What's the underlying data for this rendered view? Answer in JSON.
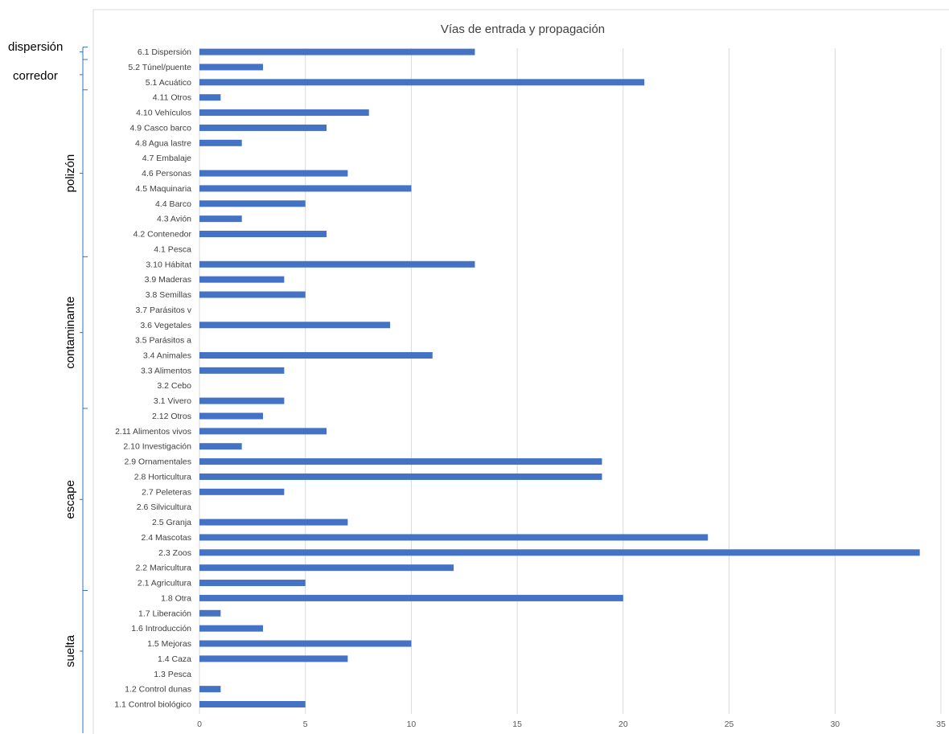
{
  "chart_data": {
    "type": "bar",
    "orientation": "horizontal",
    "title": "Vías de entrada y propagación",
    "xlim": [
      0,
      35
    ],
    "xticks": [
      0,
      5,
      10,
      15,
      20,
      25,
      30,
      35
    ],
    "grid": true,
    "color": "#4472c4",
    "categories": [
      "1.1 Control biológico",
      "1.2 Control dunas",
      "1.3 Pesca",
      "1.4 Caza",
      "1.5 Mejoras",
      "1.6 Introducción",
      "1.7 Liberación",
      "1.8 Otra",
      "2.1 Agricultura",
      "2.2 Maricultura",
      "2.3 Zoos",
      "2.4 Mascotas",
      "2.5 Granja",
      "2.6 Silvicultura",
      "2.7 Peleteras",
      "2.8 Horticultura",
      "2.9 Ornamentales",
      "2.10 Investigación",
      "2.11 Alimentos vivos",
      "2.12 Otros",
      "3.1 Vivero",
      "3.2 Cebo",
      "3.3 Alimentos",
      "3.4 Animales",
      "3.5 Parásitos a",
      "3.6 Vegetales",
      "3.7 Parásitos v",
      "3.8 Semillas",
      "3.9 Maderas",
      "3.10 Hábitat",
      "4.1 Pesca",
      "4.2 Contenedor",
      "4.3 Avión",
      "4.4 Barco",
      "4.5 Maquinaria",
      "4.6 Personas",
      "4.7 Embalaje",
      "4.8 Agua lastre",
      "4.9 Casco barco",
      "4.10 Vehículos",
      "4.11 Otros",
      "5.1 Acuático",
      "5.2 Túnel/puente",
      "6.1 Dispersión"
    ],
    "values": [
      5,
      1,
      0,
      7,
      10,
      3,
      1,
      20,
      5,
      12,
      34,
      24,
      7,
      0,
      4,
      19,
      19,
      2,
      6,
      3,
      4,
      0,
      4,
      11,
      0,
      9,
      0,
      5,
      4,
      13,
      0,
      6,
      2,
      5,
      10,
      7,
      0,
      2,
      6,
      8,
      1,
      21,
      3,
      13
    ],
    "groups": [
      {
        "name": "suelta",
        "from": 0,
        "to": 7
      },
      {
        "name": "escape",
        "from": 8,
        "to": 19
      },
      {
        "name": "contaminante",
        "from": 20,
        "to": 29
      },
      {
        "name": "polizón",
        "from": 30,
        "to": 40
      },
      {
        "name": "corredor",
        "from": 41,
        "to": 42
      },
      {
        "name": "dispersión",
        "from": 43,
        "to": 43
      }
    ]
  }
}
